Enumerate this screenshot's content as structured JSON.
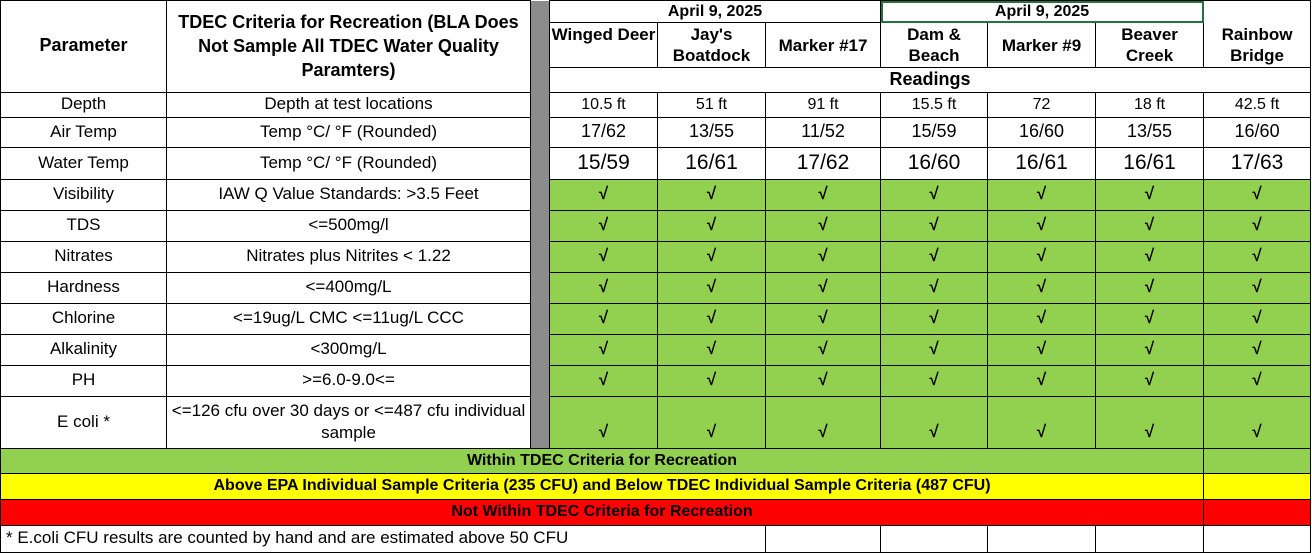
{
  "header": {
    "parameter_label": "Parameter",
    "criteria_label": "TDEC Criteria for Recreation (BLA Does Not Sample All TDEC Water Quality Paramters)",
    "date_group_1": "April 9, 2025",
    "date_group_2": "April 9, 2025",
    "readings_label": "Readings"
  },
  "sites": [
    {
      "name": "Winged Deer"
    },
    {
      "name": "Jay's Boatdock"
    },
    {
      "name": "Marker #17"
    },
    {
      "name": "Dam & Beach"
    },
    {
      "name": "Marker #9"
    },
    {
      "name": "Beaver Creek"
    },
    {
      "name": "Rainbow Bridge"
    }
  ],
  "rows": [
    {
      "parameter": "Depth",
      "criteria": "Depth at test locations",
      "values": [
        "10.5 ft",
        "51 ft",
        "91 ft",
        "15.5 ft",
        "72",
        "18 ft",
        "42.5 ft"
      ]
    },
    {
      "parameter": "Air Temp",
      "criteria": "Temp  °C/ °F   (Rounded)",
      "values": [
        "17/62",
        "13/55",
        "11/52",
        "15/59",
        "16/60",
        "13/55",
        "16/60"
      ]
    },
    {
      "parameter": "Water Temp",
      "criteria": "Temp  °C/ °F   (Rounded)",
      "values": [
        "15/59",
        "16/61",
        "17/62",
        "16/60",
        "16/61",
        "16/61",
        "17/63"
      ]
    },
    {
      "parameter": "Visibility",
      "criteria": "IAW Q Value Standards: >3.5 Feet",
      "values": [
        "√",
        "√",
        "√",
        "√",
        "√",
        "√",
        "√"
      ]
    },
    {
      "parameter": "TDS",
      "criteria": "<=500mg/l",
      "values": [
        "√",
        "√",
        "√",
        "√",
        "√",
        "√",
        "√"
      ]
    },
    {
      "parameter": "Nitrates",
      "criteria": "Nitrates plus Nitrites < 1.22",
      "values": [
        "√",
        "√",
        "√",
        "√",
        "√",
        "√",
        "√"
      ]
    },
    {
      "parameter": "Hardness",
      "criteria": "<=400mg/L",
      "values": [
        "√",
        "√",
        "√",
        "√",
        "√",
        "√",
        "√"
      ]
    },
    {
      "parameter": "Chlorine",
      "criteria": "<=19ug/L CMC  <=11ug/L CCC",
      "values": [
        "√",
        "√",
        "√",
        "√",
        "√",
        "√",
        "√"
      ]
    },
    {
      "parameter": "Alkalinity",
      "criteria": "<300mg/L",
      "values": [
        "√",
        "√",
        "√",
        "√",
        "√",
        "√",
        "√"
      ]
    },
    {
      "parameter": "PH",
      "criteria": ">=6.0-9.0<=",
      "values": [
        "√",
        "√",
        "√",
        "√",
        "√",
        "√",
        "√"
      ]
    },
    {
      "parameter": "E coli *",
      "criteria": "<=126 cfu over 30 days or <=487 cfu individual sample",
      "values": [
        "√",
        "√",
        "√",
        "√",
        "√",
        "√",
        "√"
      ]
    }
  ],
  "legend": {
    "green": "Within TDEC Criteria for Recreation",
    "yellow": "Above EPA Individual Sample Criteria (235 CFU) and Below TDEC Individual Sample Criteria (487 CFU)",
    "red": "Not Within TDEC Criteria for Recreation"
  },
  "footnote": "* E.coli CFU results are counted by hand and are estimated above 50 CFU",
  "colors": {
    "green": "#92d050",
    "yellow": "#ffff00",
    "red": "#ff0000",
    "gap": "#8c8c8c",
    "selection_outline": "#217346"
  }
}
